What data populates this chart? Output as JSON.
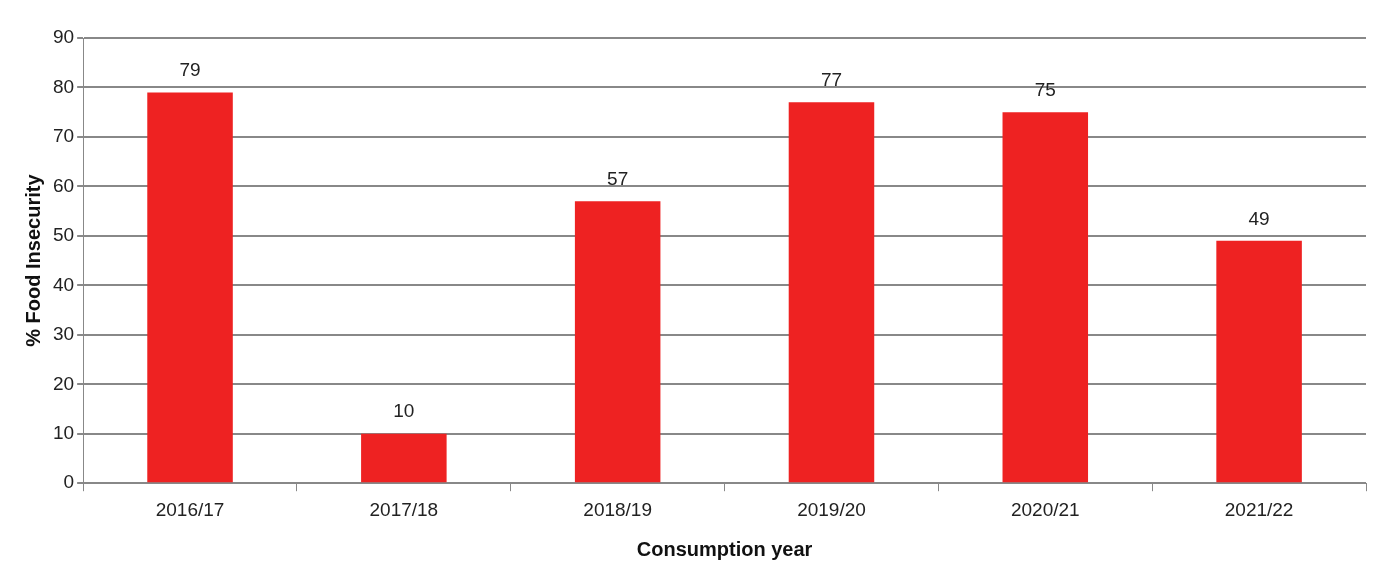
{
  "chart_data": {
    "type": "bar",
    "xlabel": "Consumption year",
    "ylabel": "% Food Insecurity",
    "categories": [
      "2016/17",
      "2017/18",
      "2018/19",
      "2019/20",
      "2020/21",
      "2021/22"
    ],
    "values": [
      79,
      10,
      57,
      77,
      75,
      49
    ],
    "color": "#ee2222",
    "ylim": [
      0,
      90
    ],
    "yticks": [
      0,
      10,
      20,
      30,
      40,
      50,
      60,
      70,
      80,
      90
    ],
    "grid": "y",
    "data_labels": true
  }
}
